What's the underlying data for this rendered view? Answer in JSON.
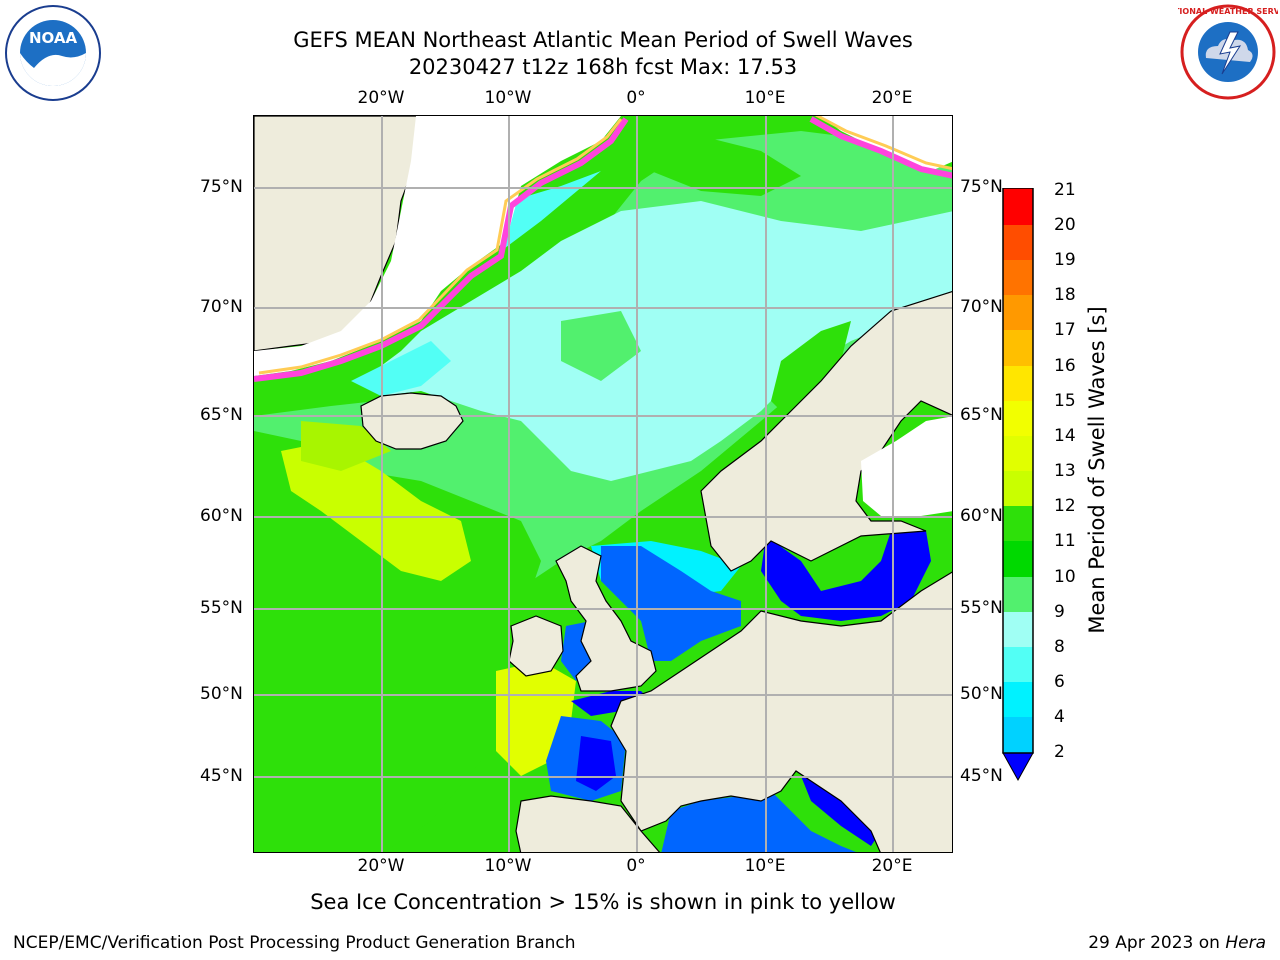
{
  "title": {
    "line1": "GEFS MEAN Northeast Atlantic Mean Period of Swell Waves",
    "line2": "20230427 t12z 168h fcst   Max: 17.53"
  },
  "logos": {
    "left": "noaa-logo",
    "right": "nws-logo",
    "left_text": "NOAA",
    "right_text": "NATIONAL WEATHER SERVICE"
  },
  "map": {
    "lon_ticks": [
      "20°W",
      "10°W",
      "0°",
      "10°E",
      "20°E"
    ],
    "lat_ticks_left": [
      "75°N",
      "70°N",
      "65°N",
      "60°N",
      "55°N",
      "50°N",
      "45°N"
    ],
    "lat_ticks_right": [
      "75°N",
      "70°N",
      "65°N",
      "60°N",
      "55°N",
      "50°N",
      "45°N"
    ],
    "grid": true
  },
  "colorbar": {
    "title": "Mean Period of Swell Waves [s]",
    "labels": [
      "21",
      "20",
      "19",
      "18",
      "17",
      "16",
      "15",
      "14",
      "13",
      "12",
      "11",
      "10",
      "9",
      "8",
      "6",
      "4",
      "2"
    ],
    "colors": [
      "#ff0000",
      "#ff2600",
      "#ff4d00",
      "#ff7300",
      "#ff9900",
      "#ffbf00",
      "#ffe600",
      "#f2ff00",
      "#e1ff00",
      "#c9ff00",
      "#8cf20f",
      "#2ee00a",
      "#00d900",
      "#52f06e",
      "#a0fff4",
      "#52fff5",
      "#00f2ff",
      "#00d2ff",
      "#0066ff"
    ],
    "underflow_color": "#0000ff"
  },
  "ice_note": "Sea Ice Concentration > 15% is shown in pink to yellow",
  "footer": {
    "left": "NCEP/EMC/Verification Post Processing Product Generation Branch",
    "right_date": "29 Apr 2023 on ",
    "right_host": "Hera"
  }
}
